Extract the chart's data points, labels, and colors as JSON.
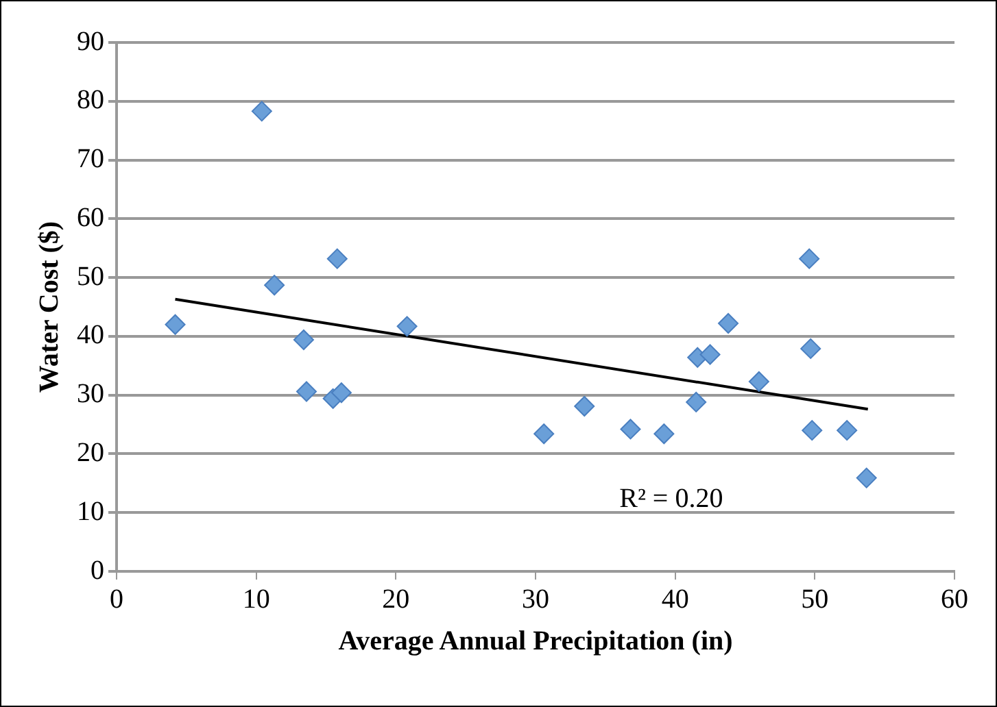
{
  "chart_data": {
    "type": "scatter",
    "xlabel": "Average Annual Precipitation (in)",
    "ylabel": "Water Cost ($)",
    "series": [
      {
        "type": "scatter",
        "color": "#6a9fd8",
        "x": [
          4.2,
          10.4,
          11.3,
          13.4,
          13.6,
          15.5,
          15.8,
          16.1,
          20.8,
          30.6,
          33.5,
          36.8,
          39.2,
          41.5,
          41.6,
          42.5,
          43.8,
          46.0,
          49.6,
          49.7,
          49.8,
          52.3,
          53.7
        ],
        "values": [
          42,
          78.3,
          48.7,
          39.4,
          30.6,
          29.4,
          53.2,
          30.4,
          41.7,
          23.4,
          28.1,
          24.2,
          23.4,
          28.8,
          36.4,
          36.9,
          42.2,
          32.3,
          53.2,
          37.9,
          24,
          24,
          15.9
        ],
        "marker": "diamond"
      },
      {
        "type": "line",
        "color": "#000000",
        "x": [
          4.2,
          53.8
        ],
        "values": [
          46.3,
          27.6
        ],
        "marker": "none"
      }
    ],
    "xlim": [
      0,
      60
    ],
    "xticks": [
      0,
      10,
      20,
      30,
      40,
      50,
      60
    ],
    "ylim": [
      0,
      90
    ],
    "yticks": [
      0,
      10,
      20,
      30,
      40,
      50,
      60,
      70,
      80,
      90
    ],
    "grid": "y",
    "legend": false,
    "annotations": [
      "R² = 0.20"
    ]
  }
}
